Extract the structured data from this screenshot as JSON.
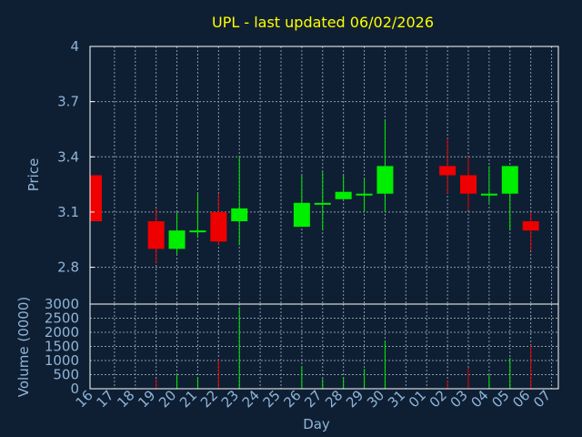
{
  "chart_data": {
    "type": "candlestick",
    "title": "UPL - last updated 06/02/2026",
    "xlabel": "Day",
    "ylabel": "Price",
    "volume_label": "Volume (0000)",
    "x_ticks": [
      "16",
      "17",
      "18",
      "19",
      "20",
      "21",
      "22",
      "23",
      "24",
      "25",
      "26",
      "27",
      "28",
      "29",
      "30",
      "31",
      "01",
      "02",
      "03",
      "04",
      "05",
      "06",
      "07"
    ],
    "price_ticks": [
      2.8,
      3.1,
      3.4,
      3.7,
      4
    ],
    "price_ylim": [
      2.6,
      4.0
    ],
    "volume_ticks": [
      0,
      500,
      1000,
      1500,
      2000,
      2500,
      3000
    ],
    "volume_ylim": [
      0,
      3000
    ],
    "grid": true,
    "colors": {
      "background": "#0f1f33",
      "up": "#00ee00",
      "down": "#ee0000",
      "title": "#ffff00",
      "text": "#8fb5d8",
      "axis": "#ffffff",
      "grid": "#8a9aaa"
    },
    "candles": [
      {
        "day": "16",
        "open": 3.3,
        "high": 3.3,
        "low": 3.05,
        "close": 3.05,
        "volume": 0
      },
      {
        "day": "19",
        "open": 3.05,
        "high": 3.12,
        "low": 2.82,
        "close": 2.9,
        "volume": 350
      },
      {
        "day": "20",
        "open": 2.9,
        "high": 3.1,
        "low": 2.87,
        "close": 3.0,
        "volume": 500
      },
      {
        "day": "21",
        "open": 2.99,
        "high": 3.2,
        "low": 2.96,
        "close": 3.0,
        "volume": 400
      },
      {
        "day": "22",
        "open": 3.1,
        "high": 3.2,
        "low": 2.92,
        "close": 2.94,
        "volume": 1050
      },
      {
        "day": "23",
        "open": 3.05,
        "high": 3.4,
        "low": 2.92,
        "close": 3.12,
        "volume": 2900
      },
      {
        "day": "26",
        "open": 3.02,
        "high": 3.3,
        "low": 3.02,
        "close": 3.15,
        "volume": 800
      },
      {
        "day": "27",
        "open": 3.14,
        "high": 3.32,
        "low": 3.0,
        "close": 3.15,
        "volume": 350
      },
      {
        "day": "28",
        "open": 3.17,
        "high": 3.3,
        "low": 3.17,
        "close": 3.21,
        "volume": 400
      },
      {
        "day": "29",
        "open": 3.19,
        "high": 3.28,
        "low": 3.1,
        "close": 3.2,
        "volume": 700
      },
      {
        "day": "30",
        "open": 3.2,
        "high": 3.6,
        "low": 3.1,
        "close": 3.35,
        "volume": 1700
      },
      {
        "day": "02",
        "open": 3.35,
        "high": 3.5,
        "low": 3.2,
        "close": 3.3,
        "volume": 300
      },
      {
        "day": "03",
        "open": 3.3,
        "high": 3.4,
        "low": 3.11,
        "close": 3.2,
        "volume": 750
      },
      {
        "day": "04",
        "open": 3.19,
        "high": 3.35,
        "low": 3.15,
        "close": 3.2,
        "volume": 500
      },
      {
        "day": "05",
        "open": 3.2,
        "high": 3.35,
        "low": 3.0,
        "close": 3.35,
        "volume": 1100
      },
      {
        "day": "06",
        "open": 3.05,
        "high": 3.1,
        "low": 2.89,
        "close": 3.0,
        "volume": 1550
      }
    ]
  }
}
